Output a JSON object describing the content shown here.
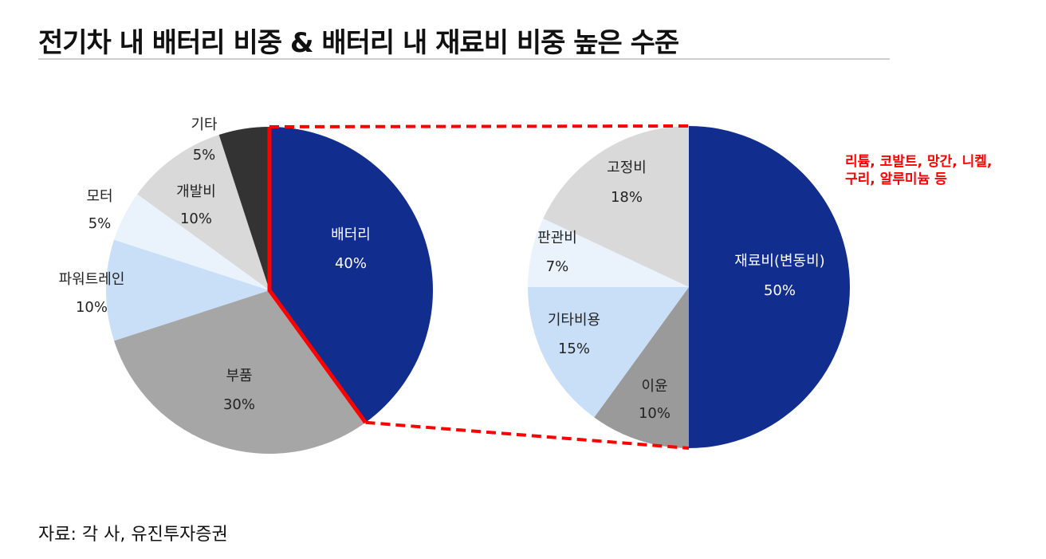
{
  "title": "전기차 내 배터리 비중 & 배터리 내 재료비 비중 높은 수준",
  "source": "자료: 각 사, 유진투자증권",
  "annotation": [
    "리튬, 코발트, 망간, 니켈,",
    "구리, 알루미늄 등"
  ],
  "colors": {
    "navy": "#112d8e",
    "gray_dark": "#a6a6a6",
    "gray_mid": "#9a9a9a",
    "light_blue": "#c9dff7",
    "pale_blue": "#eaf3fc",
    "light_gray": "#d9d9d9",
    "black": "#333333",
    "connector_red": "#ff0000"
  },
  "chart_data": [
    {
      "type": "pie",
      "title": "",
      "slices": [
        {
          "label": "배터리",
          "value": 40,
          "value_label": "40%",
          "color": "#112d8e",
          "text_color": "#ffffff"
        },
        {
          "label": "부품",
          "value": 30,
          "value_label": "30%",
          "color": "#a6a6a6",
          "text_color": "#222222"
        },
        {
          "label": "파워트레인",
          "value": 10,
          "value_label": "10%",
          "color": "#c9dff7",
          "text_color": "#222222"
        },
        {
          "label": "모터",
          "value": 5,
          "value_label": "5%",
          "color": "#eaf3fc",
          "text_color": "#222222"
        },
        {
          "label": "개발비",
          "value": 10,
          "value_label": "10%",
          "color": "#d9d9d9",
          "text_color": "#222222"
        },
        {
          "label": "기타",
          "value": 5,
          "value_label": "5%",
          "color": "#333333",
          "text_color": "#222222"
        }
      ]
    },
    {
      "type": "pie",
      "title": "",
      "slices": [
        {
          "label": "재료비(변동비)",
          "value": 50,
          "value_label": "50%",
          "color": "#112d8e",
          "text_color": "#ffffff"
        },
        {
          "label": "이윤",
          "value": 10,
          "value_label": "10%",
          "color": "#9a9a9a",
          "text_color": "#222222"
        },
        {
          "label": "기타비용",
          "value": 15,
          "value_label": "15%",
          "color": "#c9dff7",
          "text_color": "#222222"
        },
        {
          "label": "판관비",
          "value": 7,
          "value_label": "7%",
          "color": "#eaf3fc",
          "text_color": "#222222"
        },
        {
          "label": "고정비",
          "value": 18,
          "value_label": "18%",
          "color": "#d9d9d9",
          "text_color": "#222222"
        }
      ]
    }
  ]
}
